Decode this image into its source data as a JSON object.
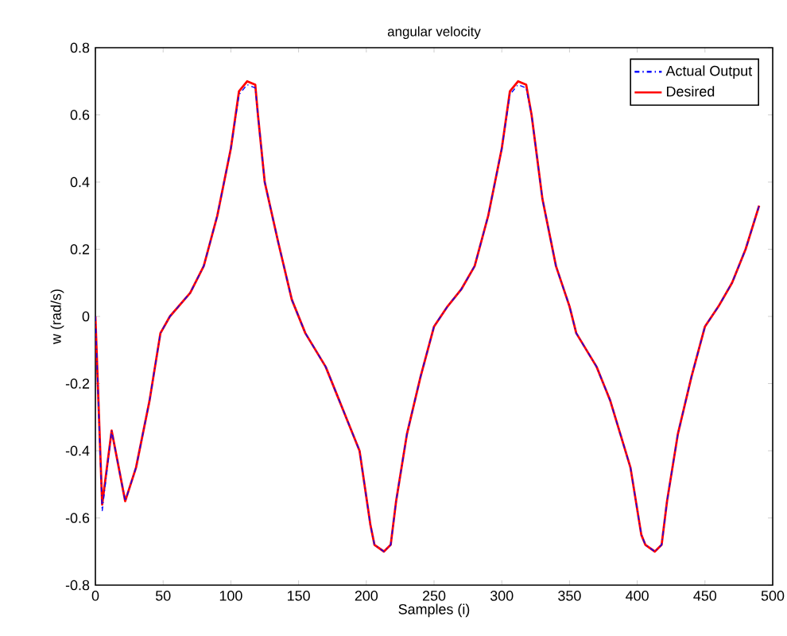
{
  "chart_data": {
    "type": "line",
    "title": "angular velocity",
    "xlabel": "Samples (i)",
    "ylabel": "w (rad/s)",
    "xlim": [
      0,
      500
    ],
    "ylim": [
      -0.8,
      0.8
    ],
    "xticks": [
      0,
      50,
      100,
      150,
      200,
      250,
      300,
      350,
      400,
      450,
      500
    ],
    "yticks": [
      -0.8,
      -0.6,
      -0.4,
      -0.2,
      0,
      0.2,
      0.4,
      0.6,
      0.8
    ],
    "grid": false,
    "legend": "top right",
    "marker": "none",
    "x": [
      0,
      5,
      12,
      22,
      30,
      40,
      48,
      55,
      70,
      80,
      90,
      100,
      106,
      112,
      118,
      120,
      125,
      135,
      145,
      155,
      170,
      180,
      195,
      203,
      206,
      213,
      218,
      222,
      230,
      240,
      250,
      260,
      270,
      280,
      290,
      300,
      306,
      312,
      318,
      322,
      330,
      340,
      350,
      355,
      370,
      380,
      395,
      403,
      406,
      413,
      418,
      422,
      430,
      440,
      450,
      460,
      470,
      480,
      490
    ],
    "series": [
      {
        "name": "Actual Output",
        "color": "#0000ff",
        "line_style": "dashdot",
        "values": [
          0,
          -0.58,
          -0.34,
          -0.55,
          -0.45,
          -0.25,
          -0.05,
          0.0,
          0.07,
          0.15,
          0.3,
          0.5,
          0.66,
          0.69,
          0.68,
          0.6,
          0.4,
          0.22,
          0.05,
          -0.05,
          -0.15,
          -0.25,
          -0.4,
          -0.62,
          -0.68,
          -0.7,
          -0.68,
          -0.55,
          -0.35,
          -0.18,
          -0.03,
          0.03,
          0.08,
          0.15,
          0.3,
          0.5,
          0.66,
          0.69,
          0.68,
          0.6,
          0.35,
          0.15,
          0.03,
          -0.05,
          -0.15,
          -0.25,
          -0.45,
          -0.65,
          -0.68,
          -0.7,
          -0.68,
          -0.55,
          -0.35,
          -0.18,
          -0.03,
          0.03,
          0.1,
          0.2,
          0.33
        ]
      },
      {
        "name": "Desired",
        "color": "#ff0000",
        "line_style": "solid",
        "values": [
          0,
          -0.56,
          -0.34,
          -0.55,
          -0.45,
          -0.25,
          -0.05,
          0.0,
          0.07,
          0.15,
          0.3,
          0.5,
          0.67,
          0.7,
          0.69,
          0.6,
          0.4,
          0.22,
          0.05,
          -0.05,
          -0.15,
          -0.25,
          -0.4,
          -0.62,
          -0.68,
          -0.7,
          -0.68,
          -0.55,
          -0.35,
          -0.18,
          -0.03,
          0.03,
          0.08,
          0.15,
          0.3,
          0.5,
          0.67,
          0.7,
          0.69,
          0.6,
          0.35,
          0.15,
          0.03,
          -0.05,
          -0.15,
          -0.25,
          -0.45,
          -0.65,
          -0.68,
          -0.7,
          -0.68,
          -0.55,
          -0.35,
          -0.18,
          -0.03,
          0.03,
          0.1,
          0.2,
          0.33
        ]
      }
    ]
  }
}
